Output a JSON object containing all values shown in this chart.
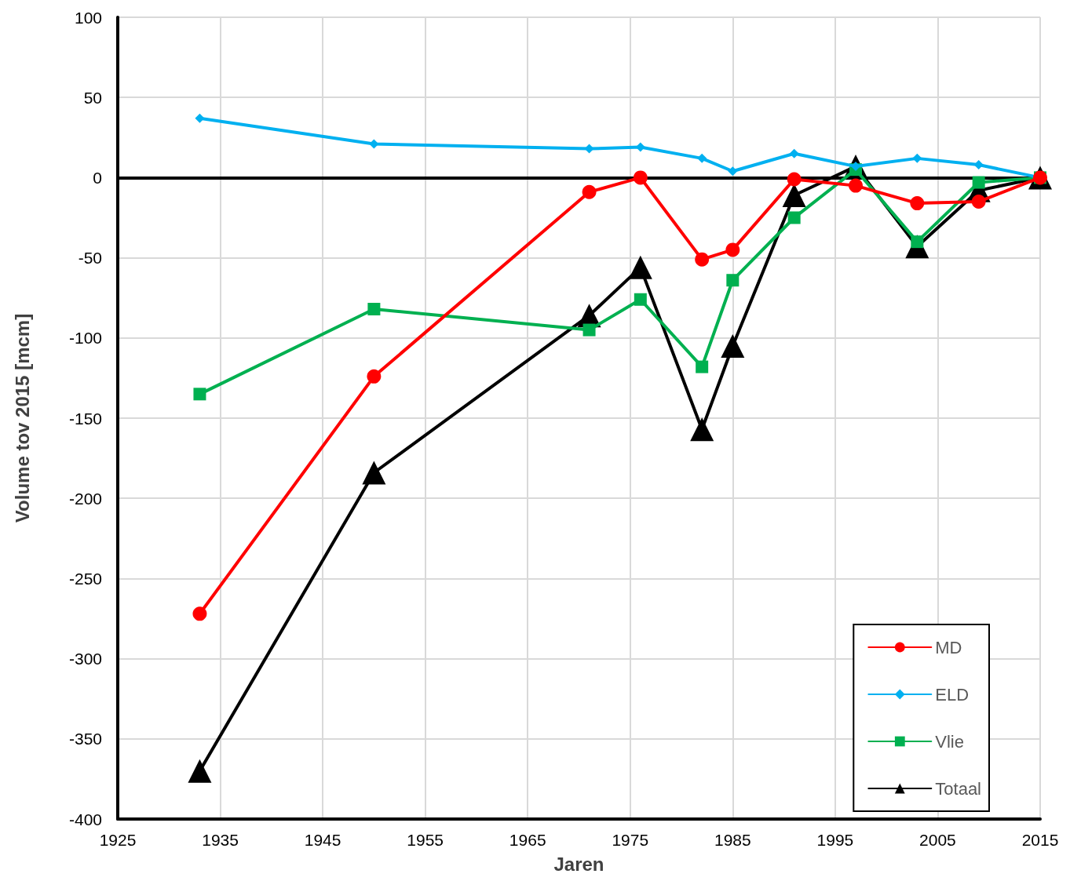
{
  "chart_data": {
    "type": "line",
    "xlabel": "Jaren",
    "ylabel": "Volume tov 2015 [mcm]",
    "x": [
      1933,
      1950,
      1971,
      1976,
      1982,
      1985,
      1991,
      1997,
      2003,
      2009,
      2015
    ],
    "series": [
      {
        "name": "MD",
        "color": "#ff0000",
        "marker": "circle",
        "values": [
          -272,
          -124,
          -9,
          0,
          -51,
          -45,
          -1,
          -5,
          -16,
          -15,
          0
        ]
      },
      {
        "name": "ELD",
        "color": "#00b0f0",
        "marker": "diamond",
        "values": [
          37,
          21,
          18,
          19,
          12,
          4,
          15,
          7,
          12,
          8,
          0
        ]
      },
      {
        "name": "Vlie",
        "color": "#00b050",
        "marker": "square",
        "values": [
          -135,
          -82,
          -95,
          -76,
          -118,
          -64,
          -25,
          5,
          -40,
          -3,
          0
        ]
      },
      {
        "name": "Totaal",
        "color": "#000000",
        "marker": "triangle",
        "values": [
          -370,
          -184,
          -86,
          -56,
          -157,
          -105,
          -11,
          7,
          -43,
          -8,
          0
        ]
      }
    ],
    "xlim": [
      1925,
      2015
    ],
    "xticks": [
      1925,
      1935,
      1945,
      1955,
      1965,
      1975,
      1985,
      1995,
      2005,
      2015
    ],
    "ylim": [
      -400,
      100
    ],
    "yticks": [
      -400,
      -350,
      -300,
      -250,
      -200,
      -150,
      -100,
      -50,
      0,
      50,
      100
    ],
    "ref_lines": [
      {
        "axis": "y",
        "value": 0,
        "color": "#000000"
      }
    ],
    "grid": true,
    "legend": "bottom right",
    "line_style": "solid"
  }
}
